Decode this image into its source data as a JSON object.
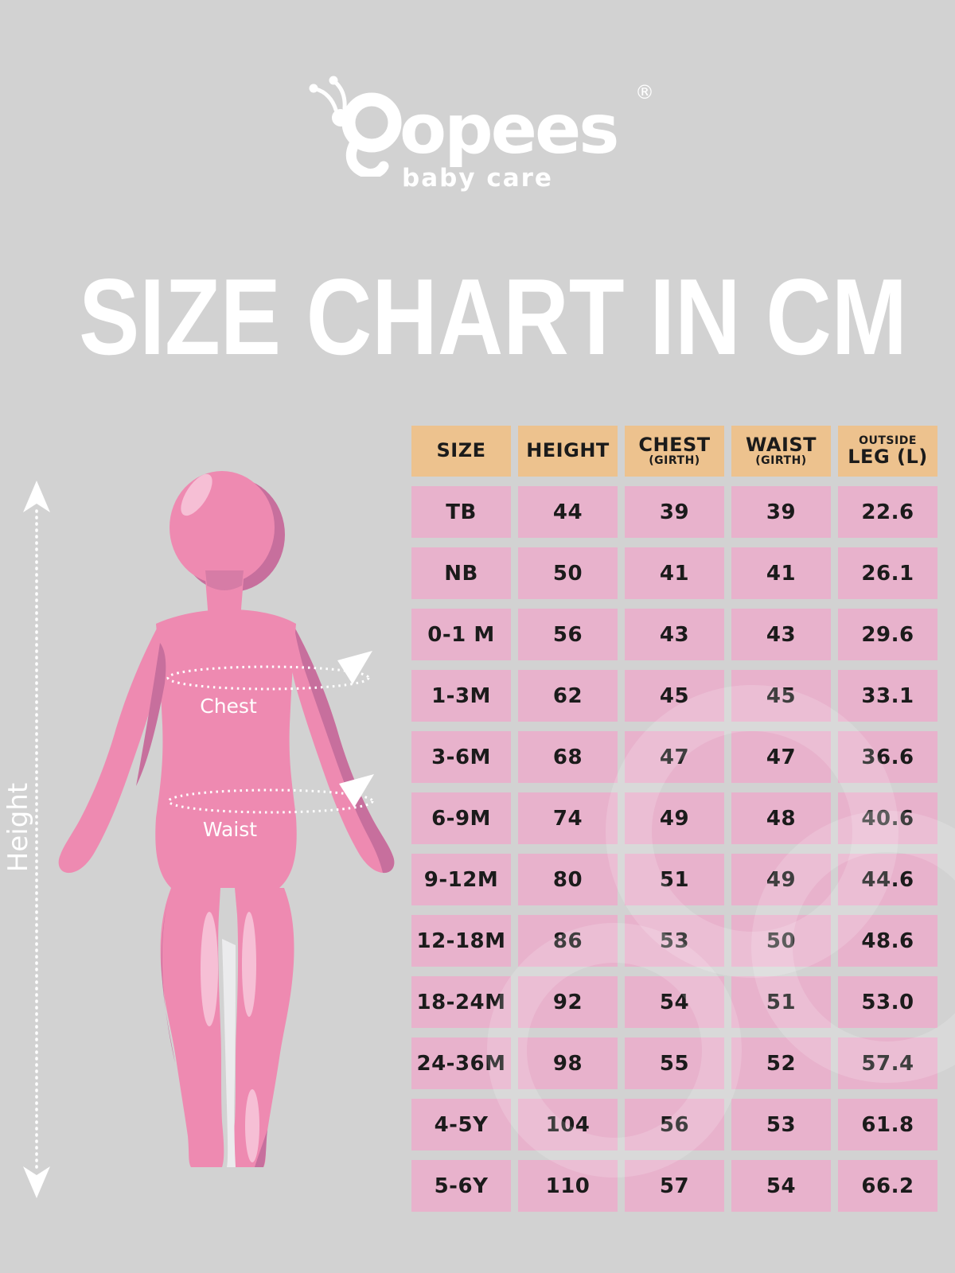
{
  "brand": {
    "name_first_letter": "p",
    "name_rest": "opees",
    "registered": "®",
    "tagline": "baby care"
  },
  "title": "SIZE CHART IN CM",
  "figure": {
    "height_label": "Height",
    "chest_label": "Chest",
    "waist_label": "Waist"
  },
  "table": {
    "columns": [
      {
        "line1": "SIZE",
        "line2": ""
      },
      {
        "line1": "HEIGHT",
        "line2": ""
      },
      {
        "line1": "CHEST",
        "line2": "(GIRTH)"
      },
      {
        "line1": "WAIST",
        "line2": "(GIRTH)"
      },
      {
        "line1": "OUTSIDE",
        "line2": "LEG (L)"
      }
    ],
    "rows": [
      {
        "size": "TB",
        "height": "44",
        "chest": "39",
        "waist": "39",
        "outside_leg": "22.6"
      },
      {
        "size": "NB",
        "height": "50",
        "chest": "41",
        "waist": "41",
        "outside_leg": "26.1"
      },
      {
        "size": "0-1 M",
        "height": "56",
        "chest": "43",
        "waist": "43",
        "outside_leg": "29.6"
      },
      {
        "size": "1-3M",
        "height": "62",
        "chest": "45",
        "waist": "45",
        "outside_leg": "33.1"
      },
      {
        "size": "3-6M",
        "height": "68",
        "chest": "47",
        "waist": "47",
        "outside_leg": "36.6"
      },
      {
        "size": "6-9M",
        "height": "74",
        "chest": "49",
        "waist": "48",
        "outside_leg": "40.6"
      },
      {
        "size": "9-12M",
        "height": "80",
        "chest": "51",
        "waist": "49",
        "outside_leg": "44.6"
      },
      {
        "size": "12-18M",
        "height": "86",
        "chest": "53",
        "waist": "50",
        "outside_leg": "48.6"
      },
      {
        "size": "18-24M",
        "height": "92",
        "chest": "54",
        "waist": "51",
        "outside_leg": "53.0"
      },
      {
        "size": "24-36M",
        "height": "98",
        "chest": "55",
        "waist": "52",
        "outside_leg": "57.4"
      },
      {
        "size": "4-5Y",
        "height": "104",
        "chest": "56",
        "waist": "53",
        "outside_leg": "61.8"
      },
      {
        "size": "5-6Y",
        "height": "110",
        "chest": "57",
        "waist": "54",
        "outside_leg": "66.2"
      }
    ]
  },
  "chart_data": {
    "type": "table",
    "title": "SIZE CHART IN CM",
    "units": "cm",
    "columns": [
      "SIZE",
      "HEIGHT",
      "CHEST (GIRTH)",
      "WAIST (GIRTH)",
      "OUTSIDE LEG (L)"
    ],
    "rows": [
      [
        "TB",
        44,
        39,
        39,
        22.6
      ],
      [
        "NB",
        50,
        41,
        41,
        26.1
      ],
      [
        "0-1 M",
        56,
        43,
        43,
        29.6
      ],
      [
        "1-3M",
        62,
        45,
        45,
        33.1
      ],
      [
        "3-6M",
        68,
        47,
        47,
        36.6
      ],
      [
        "6-9M",
        74,
        49,
        48,
        40.6
      ],
      [
        "9-12M",
        80,
        51,
        49,
        44.6
      ],
      [
        "12-18M",
        86,
        53,
        50,
        48.6
      ],
      [
        "18-24M",
        92,
        54,
        51,
        53.0
      ],
      [
        "24-36M",
        98,
        55,
        52,
        57.4
      ],
      [
        "4-5Y",
        104,
        56,
        53,
        61.8
      ],
      [
        "5-6Y",
        110,
        57,
        54,
        66.2
      ]
    ]
  },
  "colors": {
    "bg": "#d2d2d2",
    "header_bg": "#edc28e",
    "row_bg": "#e8b2cc",
    "ink": "#1b1b1b",
    "white": "#ffffff",
    "pink": "#ee8ab1",
    "pink_dark": "#c76f9d",
    "pink_light": "#f6bfd5",
    "leg_gap_light": "#ebebed"
  }
}
